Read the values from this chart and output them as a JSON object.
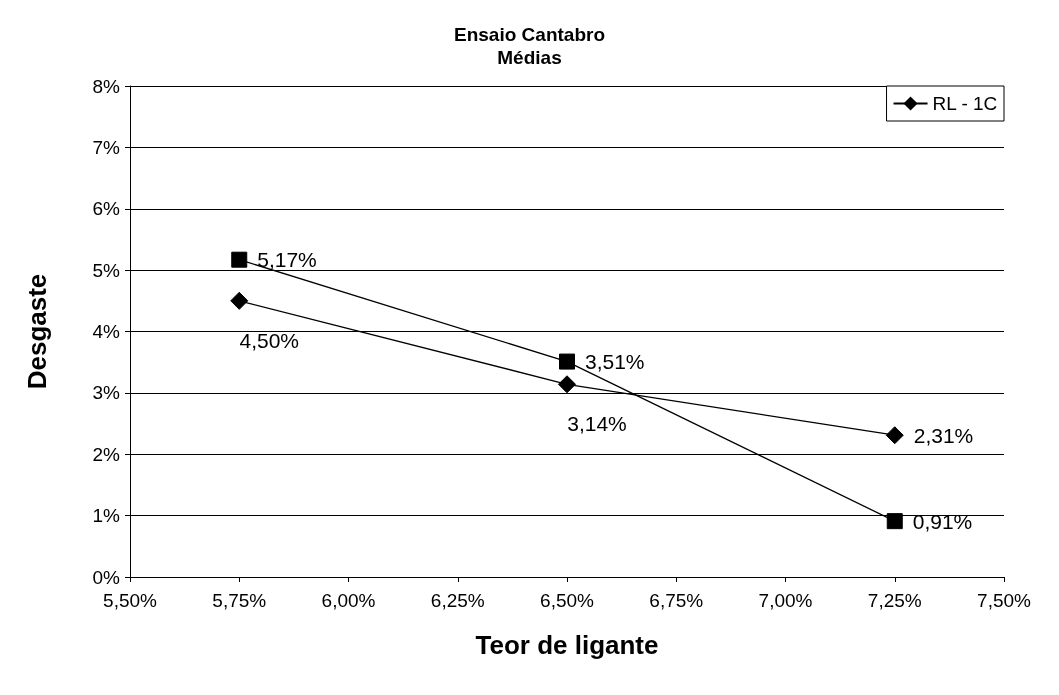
{
  "chart_data": {
    "type": "line",
    "title": "Ensaio Cantabro",
    "subtitle": "Médias",
    "xlabel": "Teor de ligante",
    "ylabel": "Desgaste",
    "x": [
      5.75,
      6.5,
      7.25
    ],
    "series": [
      {
        "color": "#000000",
        "marker": "square",
        "values": [
          5.17,
          3.51,
          0.91
        ],
        "value_labels": [
          "5,17%",
          "3,51%",
          "0,91%"
        ]
      },
      {
        "name": "RL - 1C",
        "color": "#000000",
        "marker": "diamond",
        "values": [
          4.5,
          3.14,
          2.31
        ],
        "value_labels": [
          "4,50%",
          "3,14%",
          "2,31%"
        ]
      }
    ],
    "xlim": [
      5.5,
      7.5
    ],
    "xticks": [
      {
        "value": 5.5,
        "label": "5,50%"
      },
      {
        "value": 5.75,
        "label": "5,75%"
      },
      {
        "value": 6,
        "label": "6,00%"
      },
      {
        "value": 6.25,
        "label": "6,25%"
      },
      {
        "value": 6.5,
        "label": "6,50%"
      },
      {
        "value": 6.75,
        "label": "6,75%"
      },
      {
        "value": 7,
        "label": "7,00%"
      },
      {
        "value": 7.25,
        "label": "7,25%"
      },
      {
        "value": 7.5,
        "label": "7,50%"
      }
    ],
    "ylim": [
      0,
      8
    ],
    "yticks": [
      {
        "value": 0,
        "label": "0%"
      },
      {
        "value": 1,
        "label": "1%"
      },
      {
        "value": 2,
        "label": "2%"
      },
      {
        "value": 3,
        "label": "3%"
      },
      {
        "value": 4,
        "label": "4%"
      },
      {
        "value": 5,
        "label": "5%"
      },
      {
        "value": 6,
        "label": "6%"
      },
      {
        "value": 7,
        "label": "7%"
      },
      {
        "value": 8,
        "label": "8%"
      }
    ],
    "grid": "y",
    "legend": "top right",
    "line_style": "solid"
  }
}
